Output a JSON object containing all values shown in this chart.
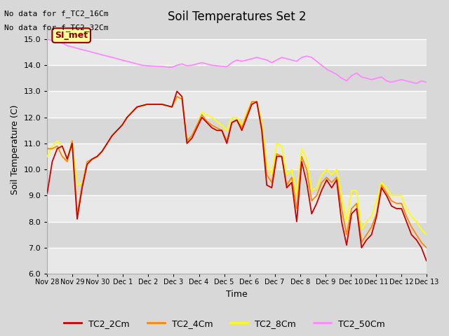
{
  "title": "Soil Temperatures Set 2",
  "xlabel": "Time",
  "ylabel": "Soil Temperature (C)",
  "text_top_left": [
    "No data for f_TC2_16Cm",
    "No data for f_TC2_32Cm"
  ],
  "annotation_box": "SI_met",
  "ylim": [
    6.0,
    15.5
  ],
  "yticks": [
    6.0,
    7.0,
    8.0,
    9.0,
    10.0,
    11.0,
    12.0,
    13.0,
    14.0,
    15.0
  ],
  "xtick_labels": [
    "Nov 28",
    "Nov 29",
    "Nov 30",
    "Dec 1",
    "Dec 2",
    "Dec 3",
    "Dec 4",
    "Dec 5",
    "Dec 6",
    "Dec 7",
    "Dec 8",
    "Dec 9",
    "Dec 10",
    "Dec 11",
    "Dec 12",
    "Dec 13"
  ],
  "colors": {
    "TC2_2Cm": "#cc0000",
    "TC2_4Cm": "#ff8800",
    "TC2_8Cm": "#ffff00",
    "TC2_50Cm": "#ff88ff"
  },
  "background_color": "#d8d8d8",
  "plot_bg_color_light": "#e8e8e8",
  "plot_bg_color_dark": "#d8d8d8",
  "grid_color": "#ffffff",
  "band_colors": [
    "#e8e8e8",
    "#d8d8d8"
  ],
  "series": {
    "TC2_2Cm": [
      9.1,
      10.3,
      10.8,
      10.9,
      10.4,
      11.0,
      8.1,
      9.3,
      10.2,
      10.4,
      10.5,
      10.7,
      11.0,
      11.3,
      11.5,
      11.7,
      12.0,
      12.2,
      12.4,
      12.45,
      12.5,
      12.5,
      12.5,
      12.5,
      12.45,
      12.4,
      13.0,
      12.8,
      11.0,
      11.2,
      11.6,
      12.0,
      11.8,
      11.6,
      11.5,
      11.5,
      11.0,
      11.8,
      11.9,
      11.5,
      12.0,
      12.5,
      12.6,
      11.5,
      9.4,
      9.3,
      10.5,
      10.5,
      9.3,
      9.5,
      8.0,
      10.3,
      9.5,
      8.3,
      8.7,
      9.2,
      9.6,
      9.3,
      9.6,
      8.0,
      7.1,
      8.3,
      8.5,
      7.0,
      7.3,
      7.5,
      8.2,
      9.3,
      9.0,
      8.6,
      8.5,
      8.5,
      8.0,
      7.5,
      7.3,
      7.0,
      6.5
    ],
    "TC2_4Cm": [
      10.8,
      10.8,
      10.9,
      10.5,
      10.3,
      11.1,
      8.3,
      9.4,
      10.3,
      10.4,
      10.5,
      10.7,
      11.0,
      11.3,
      11.5,
      11.7,
      12.0,
      12.2,
      12.4,
      12.45,
      12.5,
      12.5,
      12.5,
      12.5,
      12.45,
      12.4,
      12.8,
      12.7,
      11.1,
      11.3,
      11.7,
      12.1,
      11.85,
      11.7,
      11.6,
      11.5,
      11.1,
      11.8,
      11.9,
      11.6,
      12.1,
      12.6,
      12.6,
      11.6,
      9.8,
      9.5,
      10.6,
      10.5,
      9.4,
      9.7,
      8.5,
      10.5,
      10.0,
      8.8,
      9.0,
      9.5,
      9.7,
      9.5,
      9.7,
      8.5,
      7.5,
      8.5,
      8.7,
      7.2,
      7.5,
      7.8,
      8.3,
      9.4,
      9.1,
      8.8,
      8.7,
      8.7,
      8.2,
      7.8,
      7.5,
      7.2,
      7.0
    ],
    "TC2_8Cm": [
      10.5,
      10.9,
      11.1,
      10.9,
      10.4,
      11.1,
      9.4,
      9.5,
      10.3,
      10.4,
      10.5,
      10.7,
      11.0,
      11.3,
      11.5,
      11.7,
      12.0,
      12.2,
      12.4,
      12.45,
      12.5,
      12.5,
      12.5,
      12.5,
      12.45,
      12.4,
      12.8,
      12.7,
      11.1,
      11.3,
      11.7,
      12.2,
      12.1,
      12.0,
      11.85,
      11.7,
      11.5,
      12.0,
      12.0,
      11.7,
      12.2,
      12.6,
      12.6,
      11.8,
      10.2,
      9.8,
      11.0,
      10.9,
      9.8,
      10.0,
      9.0,
      10.8,
      10.4,
      9.2,
      9.3,
      9.8,
      10.0,
      9.8,
      10.0,
      9.0,
      8.0,
      9.2,
      9.2,
      7.7,
      8.0,
      8.2,
      8.8,
      9.5,
      9.3,
      9.0,
      9.0,
      9.0,
      8.5,
      8.2,
      8.0,
      7.7,
      7.5
    ],
    "TC2_50Cm": [
      15.0,
      14.95,
      14.9,
      14.85,
      14.75,
      14.7,
      14.65,
      14.6,
      14.55,
      14.5,
      14.45,
      14.4,
      14.35,
      14.3,
      14.25,
      14.2,
      14.15,
      14.1,
      14.05,
      14.0,
      13.98,
      13.97,
      13.96,
      13.95,
      13.93,
      13.92,
      14.0,
      14.05,
      13.98,
      14.0,
      14.05,
      14.1,
      14.05,
      14.0,
      13.98,
      13.96,
      13.94,
      14.1,
      14.2,
      14.15,
      14.2,
      14.25,
      14.3,
      14.25,
      14.2,
      14.1,
      14.2,
      14.3,
      14.25,
      14.2,
      14.15,
      14.3,
      14.35,
      14.3,
      14.15,
      14.0,
      13.85,
      13.75,
      13.65,
      13.5,
      13.4,
      13.6,
      13.7,
      13.55,
      13.5,
      13.45,
      13.5,
      13.55,
      13.4,
      13.35,
      13.4,
      13.45,
      13.4,
      13.35,
      13.3,
      13.4,
      13.35
    ]
  }
}
